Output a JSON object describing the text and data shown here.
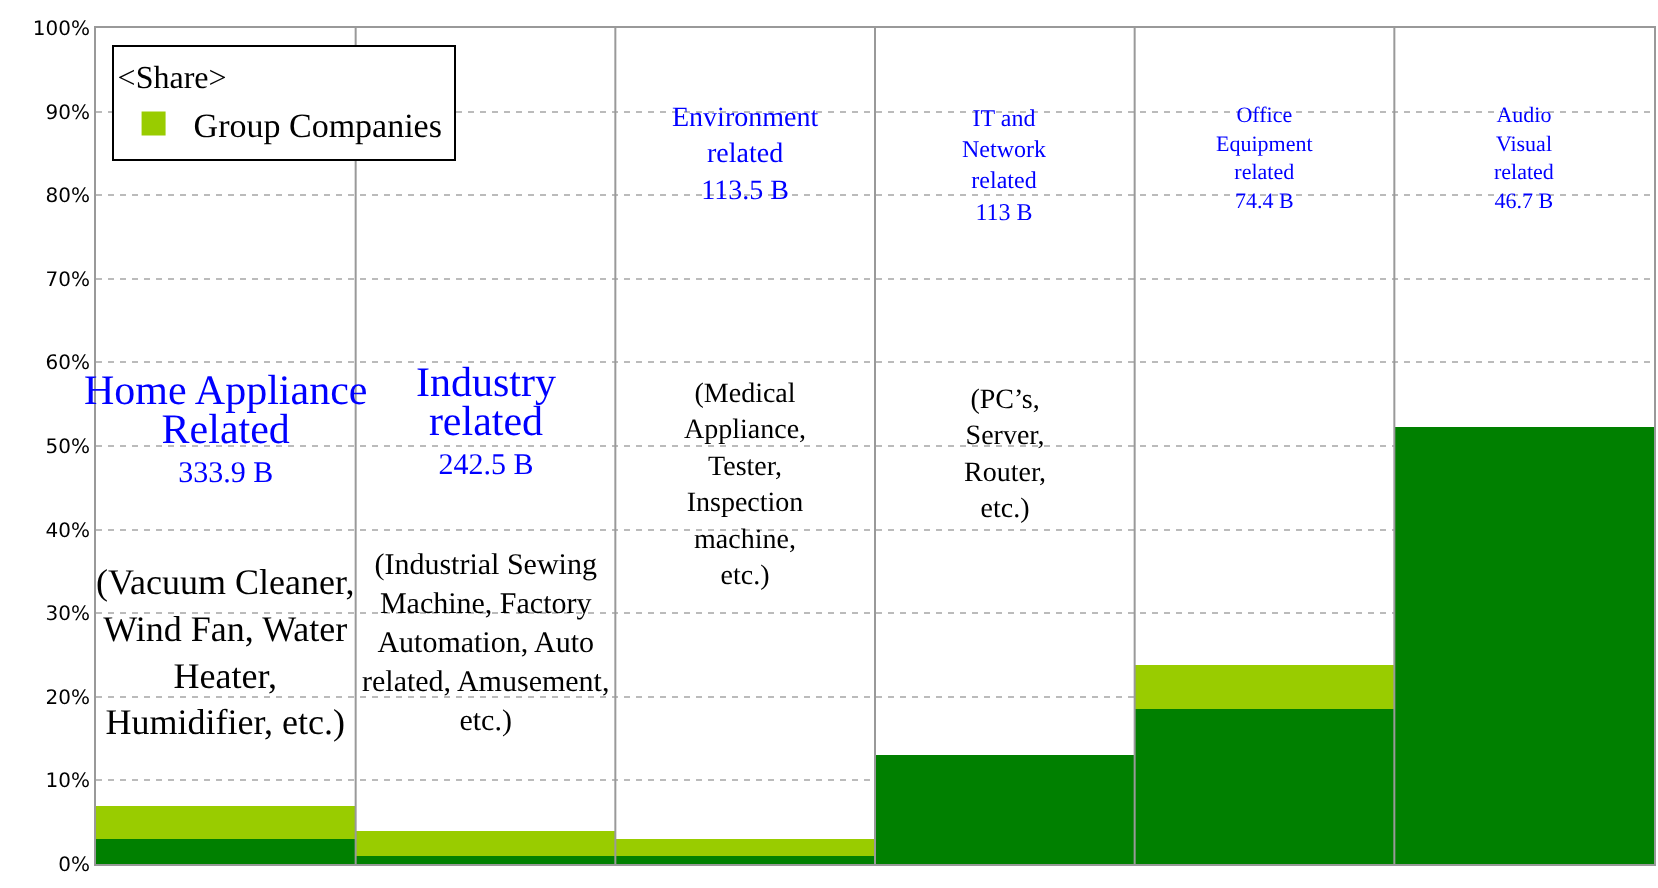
{
  "chart_data": {
    "type": "bar",
    "stacked": true,
    "legend_title": "<Share>",
    "legend": "top left",
    "grid": "y",
    "tick_labels": "y",
    "categories": [
      "Home Appliance Related",
      "Industry related",
      "Environment related",
      "IT and Network related",
      "Office Equipment related",
      "Audio Visual related"
    ],
    "series": [
      {
        "color": "#008000",
        "values": [
          3,
          1,
          1,
          13,
          18.6,
          52.3
        ]
      },
      {
        "name": "Group Companies",
        "color": "#99cc00",
        "values": [
          3.9,
          3,
          2,
          0,
          5.2,
          0
        ]
      }
    ],
    "ylim": [
      0,
      100
    ],
    "yticks": [
      {
        "value": 0,
        "label": "0%"
      },
      {
        "value": 10,
        "label": "10%"
      },
      {
        "value": 20,
        "label": "20%"
      },
      {
        "value": 30,
        "label": "30%"
      },
      {
        "value": 40,
        "label": "40%"
      },
      {
        "value": 50,
        "label": "50%"
      },
      {
        "value": 60,
        "label": "60%"
      },
      {
        "value": 70,
        "label": "70%"
      },
      {
        "value": 80,
        "label": "80%"
      },
      {
        "value": 90,
        "label": "90%"
      },
      {
        "value": 100,
        "label": "100%"
      }
    ],
    "annotations": [
      "333.9 B",
      "242.5 B",
      "113.5 B",
      "113 B",
      "74.4 B",
      "46.7 B",
      "(Vacuum Cleaner, Wind Fan, Water Heater, Humidifier, etc.)",
      "(Industrial Sewing Machine, Factory Automation, Auto related, Amusement, etc.)",
      "(Medical Appliance, Tester, Inspection machine, etc.)",
      "(PC’s, Server, Router, etc.)"
    ]
  }
}
